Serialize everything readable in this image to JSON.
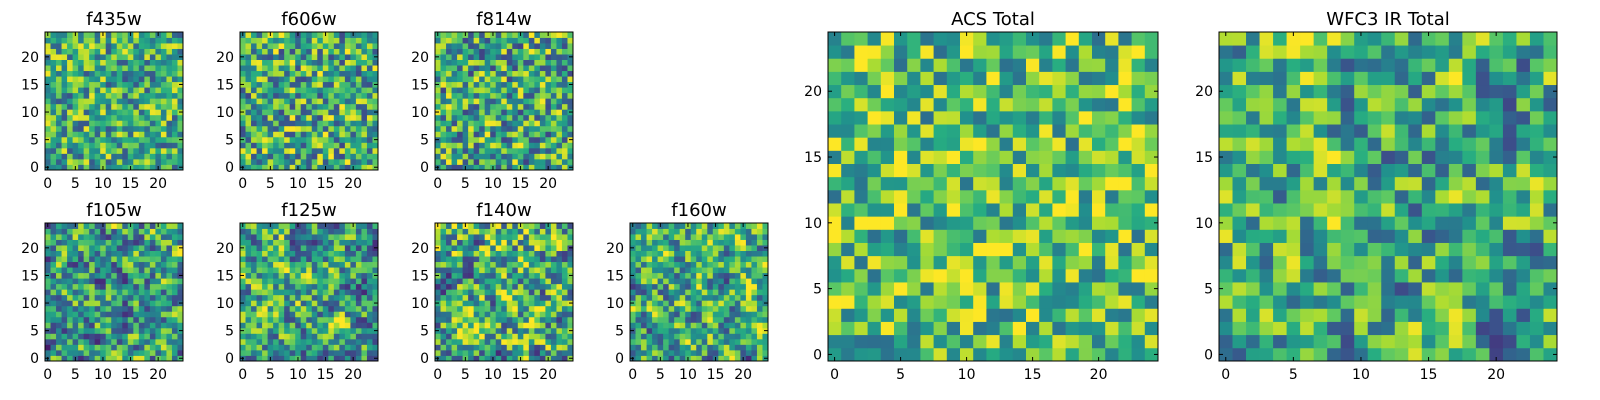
{
  "chart_data": [
    {
      "type": "heatmap",
      "title": "f435w",
      "xlim": [
        -0.5,
        24.5
      ],
      "ylim": [
        -0.5,
        24.5
      ],
      "xticks": [
        0,
        5,
        10,
        15,
        20
      ],
      "yticks": [
        0,
        5,
        10,
        15,
        20
      ],
      "colormap": "viridis",
      "grid": false,
      "noise": {
        "seed": 11,
        "smooth": 0,
        "center": 0.62,
        "spread": 0.45
      }
    },
    {
      "type": "heatmap",
      "title": "f606w",
      "xlim": [
        -0.5,
        24.5
      ],
      "ylim": [
        -0.5,
        24.5
      ],
      "xticks": [
        0,
        5,
        10,
        15,
        20
      ],
      "yticks": [
        0,
        5,
        10,
        15,
        20
      ],
      "colormap": "viridis",
      "grid": false,
      "noise": {
        "seed": 23,
        "smooth": 0,
        "center": 0.62,
        "spread": 0.5
      }
    },
    {
      "type": "heatmap",
      "title": "f814w",
      "xlim": [
        -0.5,
        24.5
      ],
      "ylim": [
        -0.5,
        24.5
      ],
      "xticks": [
        0,
        5,
        10,
        15,
        20
      ],
      "yticks": [
        0,
        5,
        10,
        15,
        20
      ],
      "colormap": "viridis",
      "grid": false,
      "noise": {
        "seed": 37,
        "smooth": 0,
        "center": 0.6,
        "spread": 0.5
      }
    },
    {
      "type": "heatmap",
      "title": "f105w",
      "xlim": [
        -0.5,
        24.5
      ],
      "ylim": [
        -0.5,
        24.5
      ],
      "xticks": [
        0,
        5,
        10,
        15,
        20
      ],
      "yticks": [
        0,
        5,
        10,
        15,
        20
      ],
      "colormap": "viridis",
      "grid": false,
      "noise": {
        "seed": 41,
        "smooth": 1,
        "center": 0.55,
        "spread": 0.6
      }
    },
    {
      "type": "heatmap",
      "title": "f125w",
      "xlim": [
        -0.5,
        24.5
      ],
      "ylim": [
        -0.5,
        24.5
      ],
      "xticks": [
        0,
        5,
        10,
        15,
        20
      ],
      "yticks": [
        0,
        5,
        10,
        15,
        20
      ],
      "colormap": "viridis",
      "grid": false,
      "noise": {
        "seed": 53,
        "smooth": 1,
        "center": 0.6,
        "spread": 0.6
      }
    },
    {
      "type": "heatmap",
      "title": "f140w",
      "xlim": [
        -0.5,
        24.5
      ],
      "ylim": [
        -0.5,
        24.5
      ],
      "xticks": [
        0,
        5,
        10,
        15,
        20
      ],
      "yticks": [
        0,
        5,
        10,
        15,
        20
      ],
      "colormap": "viridis",
      "grid": false,
      "noise": {
        "seed": 67,
        "smooth": 1,
        "center": 0.6,
        "spread": 0.6
      }
    },
    {
      "type": "heatmap",
      "title": "f160w",
      "xlim": [
        -0.5,
        24.5
      ],
      "ylim": [
        -0.5,
        24.5
      ],
      "xticks": [
        0,
        5,
        10,
        15,
        20
      ],
      "yticks": [
        0,
        5,
        10,
        15,
        20
      ],
      "colormap": "viridis",
      "grid": false,
      "noise": {
        "seed": 79,
        "smooth": 1,
        "center": 0.6,
        "spread": 0.6
      }
    },
    {
      "type": "heatmap",
      "title": "ACS Total",
      "xlim": [
        -0.5,
        24.5
      ],
      "ylim": [
        -0.5,
        24.5
      ],
      "xticks": [
        0,
        5,
        10,
        15,
        20
      ],
      "yticks": [
        0,
        5,
        10,
        15,
        20
      ],
      "colormap": "viridis",
      "grid": false,
      "noise": {
        "seed": 97,
        "smooth": 0,
        "center": 0.7,
        "spread": 0.42
      }
    },
    {
      "type": "heatmap",
      "title": "WFC3 IR Total",
      "xlim": [
        -0.5,
        24.5
      ],
      "ylim": [
        -0.5,
        24.5
      ],
      "xticks": [
        0,
        5,
        10,
        15,
        20
      ],
      "yticks": [
        0,
        5,
        10,
        15,
        20
      ],
      "colormap": "viridis",
      "grid": false,
      "noise": {
        "seed": 131,
        "smooth": 1,
        "center": 0.62,
        "spread": 0.55
      }
    }
  ]
}
